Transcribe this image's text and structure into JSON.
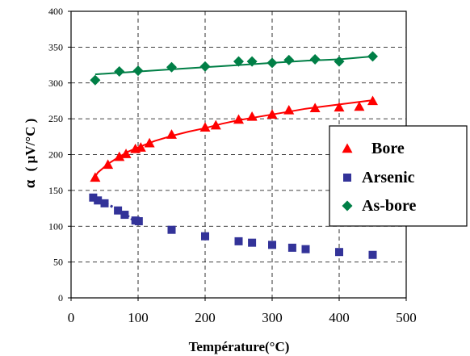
{
  "chart_data": {
    "type": "scatter",
    "xlabel": "Température(°C)",
    "ylabel_prefix": "α",
    "ylabel": "( µV/°C )",
    "xlim": [
      0,
      500
    ],
    "ylim": [
      0,
      400
    ],
    "x_ticks": [
      "0",
      "100",
      "200",
      "300",
      "400",
      "500"
    ],
    "y_ticks": [
      "0",
      "50",
      "100",
      "150",
      "200",
      "250",
      "300",
      "350",
      "400"
    ],
    "grid": true,
    "legend_position": "right",
    "series": [
      {
        "name": "Bore",
        "marker": "triangle",
        "color": "#ff0000",
        "points": [
          [
            36,
            168
          ],
          [
            55,
            186
          ],
          [
            72,
            197
          ],
          [
            82,
            201
          ],
          [
            96,
            208
          ],
          [
            104,
            210
          ],
          [
            117,
            216
          ],
          [
            150,
            228
          ],
          [
            200,
            238
          ],
          [
            216,
            241
          ],
          [
            250,
            249
          ],
          [
            270,
            253
          ],
          [
            300,
            256
          ],
          [
            325,
            262
          ],
          [
            364,
            265
          ],
          [
            400,
            266
          ],
          [
            430,
            267
          ],
          [
            450,
            275
          ]
        ],
        "fit": [
          [
            33,
            165
          ],
          [
            40,
            175
          ],
          [
            55,
            187
          ],
          [
            70,
            196
          ],
          [
            85,
            204
          ],
          [
            100,
            210
          ],
          [
            125,
            219
          ],
          [
            150,
            226
          ],
          [
            175,
            232
          ],
          [
            200,
            237
          ],
          [
            225,
            243
          ],
          [
            250,
            248
          ],
          [
            275,
            252
          ],
          [
            300,
            256
          ],
          [
            325,
            260
          ],
          [
            350,
            264
          ],
          [
            375,
            267
          ],
          [
            400,
            270
          ],
          [
            425,
            273
          ],
          [
            450,
            276
          ]
        ]
      },
      {
        "name": "Arsenic",
        "marker": "square",
        "color": "#333399",
        "points": [
          [
            33,
            140
          ],
          [
            40,
            136
          ],
          [
            50,
            132
          ],
          [
            70,
            122
          ],
          [
            80,
            116
          ],
          [
            96,
            108
          ],
          [
            101,
            107
          ],
          [
            150,
            95
          ],
          [
            200,
            86
          ],
          [
            250,
            79
          ],
          [
            270,
            77
          ],
          [
            300,
            74
          ],
          [
            330,
            70
          ],
          [
            350,
            68
          ],
          [
            400,
            64
          ],
          [
            450,
            60
          ]
        ],
        "fit": [
          [
            33,
            141
          ],
          [
            50,
            133
          ],
          [
            70,
            123
          ],
          [
            85,
            114
          ],
          [
            100,
            103
          ]
        ]
      },
      {
        "name": "As-bore",
        "marker": "diamond",
        "color": "#007f46",
        "points": [
          [
            36,
            304
          ],
          [
            72,
            316
          ],
          [
            100,
            317
          ],
          [
            150,
            322
          ],
          [
            200,
            323
          ],
          [
            250,
            330
          ],
          [
            270,
            330
          ],
          [
            300,
            328
          ],
          [
            325,
            332
          ],
          [
            364,
            333
          ],
          [
            400,
            330
          ],
          [
            450,
            337
          ]
        ],
        "fit": [
          [
            36,
            312
          ],
          [
            100,
            316
          ],
          [
            150,
            319
          ],
          [
            200,
            322
          ],
          [
            250,
            325
          ],
          [
            300,
            328
          ],
          [
            350,
            331
          ],
          [
            400,
            333
          ],
          [
            450,
            337
          ]
        ]
      }
    ]
  }
}
